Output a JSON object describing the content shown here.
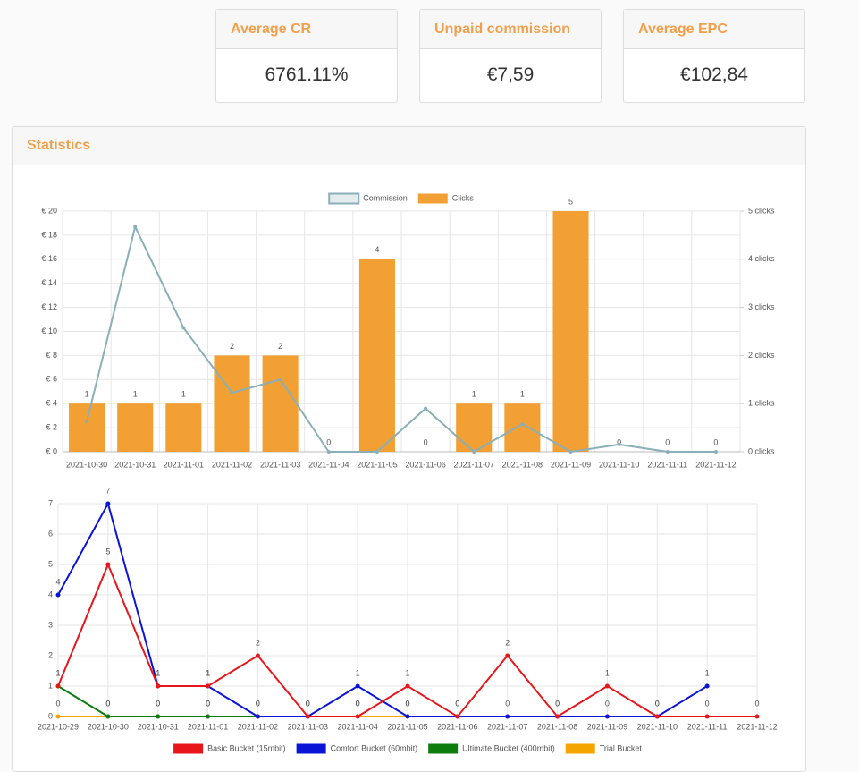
{
  "cards": [
    {
      "title": "Average CR",
      "value": "6761.11%"
    },
    {
      "title": "Unpaid commission",
      "value": "€7,59"
    },
    {
      "title": "Average EPC",
      "value": "€102,84"
    }
  ],
  "panel_title": "Statistics",
  "chart_data": [
    {
      "type": "combo",
      "legend": "top",
      "grid": true,
      "categories": [
        "2021-10-30",
        "2021-10-31",
        "2021-11-01",
        "2021-11-02",
        "2021-11-03",
        "2021-11-04",
        "2021-11-05",
        "2021-11-06",
        "2021-11-07",
        "2021-11-08",
        "2021-11-09",
        "2021-11-10",
        "2021-11-11",
        "2021-11-12"
      ],
      "series": [
        {
          "name": "Commission",
          "type": "line",
          "color": "#8aafb8",
          "values": [
            2.5,
            18.7,
            10.3,
            4.9,
            6,
            0,
            0,
            3.6,
            0,
            2.3,
            0,
            0.6,
            0,
            0
          ]
        },
        {
          "name": "Clicks",
          "type": "bar",
          "color": "#f29f33",
          "axis": "y2",
          "values": [
            1,
            1,
            1,
            2,
            2,
            0,
            4,
            0,
            1,
            1,
            5,
            0,
            0,
            0
          ]
        }
      ],
      "ylim": [
        0,
        20
      ],
      "yticks": [
        {
          "value": 0,
          "label": "€ 0"
        },
        {
          "value": 2,
          "label": "€ 2"
        },
        {
          "value": 4,
          "label": "€ 4"
        },
        {
          "value": 6,
          "label": "€ 6"
        },
        {
          "value": 8,
          "label": "€ 8"
        },
        {
          "value": 10,
          "label": "€ 10"
        },
        {
          "value": 12,
          "label": "€ 12"
        },
        {
          "value": 14,
          "label": "€ 14"
        },
        {
          "value": 16,
          "label": "€ 16"
        },
        {
          "value": 18,
          "label": "€ 18"
        },
        {
          "value": 20,
          "label": "€ 20"
        }
      ],
      "y2lim": [
        0,
        5
      ],
      "y2ticks": [
        {
          "value": 0,
          "label": "0 clicks"
        },
        {
          "value": 1,
          "label": "1 clicks"
        },
        {
          "value": 2,
          "label": "2 clicks"
        },
        {
          "value": 3,
          "label": "3 clicks"
        },
        {
          "value": 4,
          "label": "4 clicks"
        },
        {
          "value": 5,
          "label": "5 clicks"
        }
      ]
    },
    {
      "type": "line",
      "legend": "bottom",
      "grid": true,
      "categories": [
        "2021-10-29",
        "2021-10-30",
        "2021-10-31",
        "2021-11-01",
        "2021-11-02",
        "2021-11-03",
        "2021-11-04",
        "2021-11-05",
        "2021-11-06",
        "2021-11-07",
        "2021-11-08",
        "2021-11-09",
        "2021-11-10",
        "2021-11-11",
        "2021-11-12"
      ],
      "series": [
        {
          "name": "Basic Bucket (15mbit)",
          "color": "#e8161b",
          "values": [
            1,
            5,
            1,
            1,
            2,
            0,
            0,
            1,
            0,
            2,
            0,
            1,
            0,
            0,
            0
          ]
        },
        {
          "name": "Comfort Bucket (60mbit)",
          "color": "#0a14d6",
          "values": [
            4,
            7,
            1,
            1,
            0,
            0,
            1,
            0,
            0,
            0,
            0,
            0,
            0,
            1,
            null
          ]
        },
        {
          "name": "Ultimate Bucket (400mbit)",
          "color": "#0c7d0c",
          "values": [
            1,
            0,
            0,
            0,
            0,
            null,
            null,
            null,
            null,
            null,
            null,
            null,
            null,
            null,
            null
          ]
        },
        {
          "name": "Trial Bucket",
          "color": "#f5a500",
          "values": [
            0,
            0,
            0,
            0,
            0,
            0,
            0,
            0,
            null,
            null,
            null,
            null,
            null,
            null,
            null
          ]
        }
      ],
      "ylim": [
        0,
        7
      ],
      "yticks": [
        0,
        1,
        2,
        3,
        4,
        5,
        6,
        7
      ]
    }
  ]
}
